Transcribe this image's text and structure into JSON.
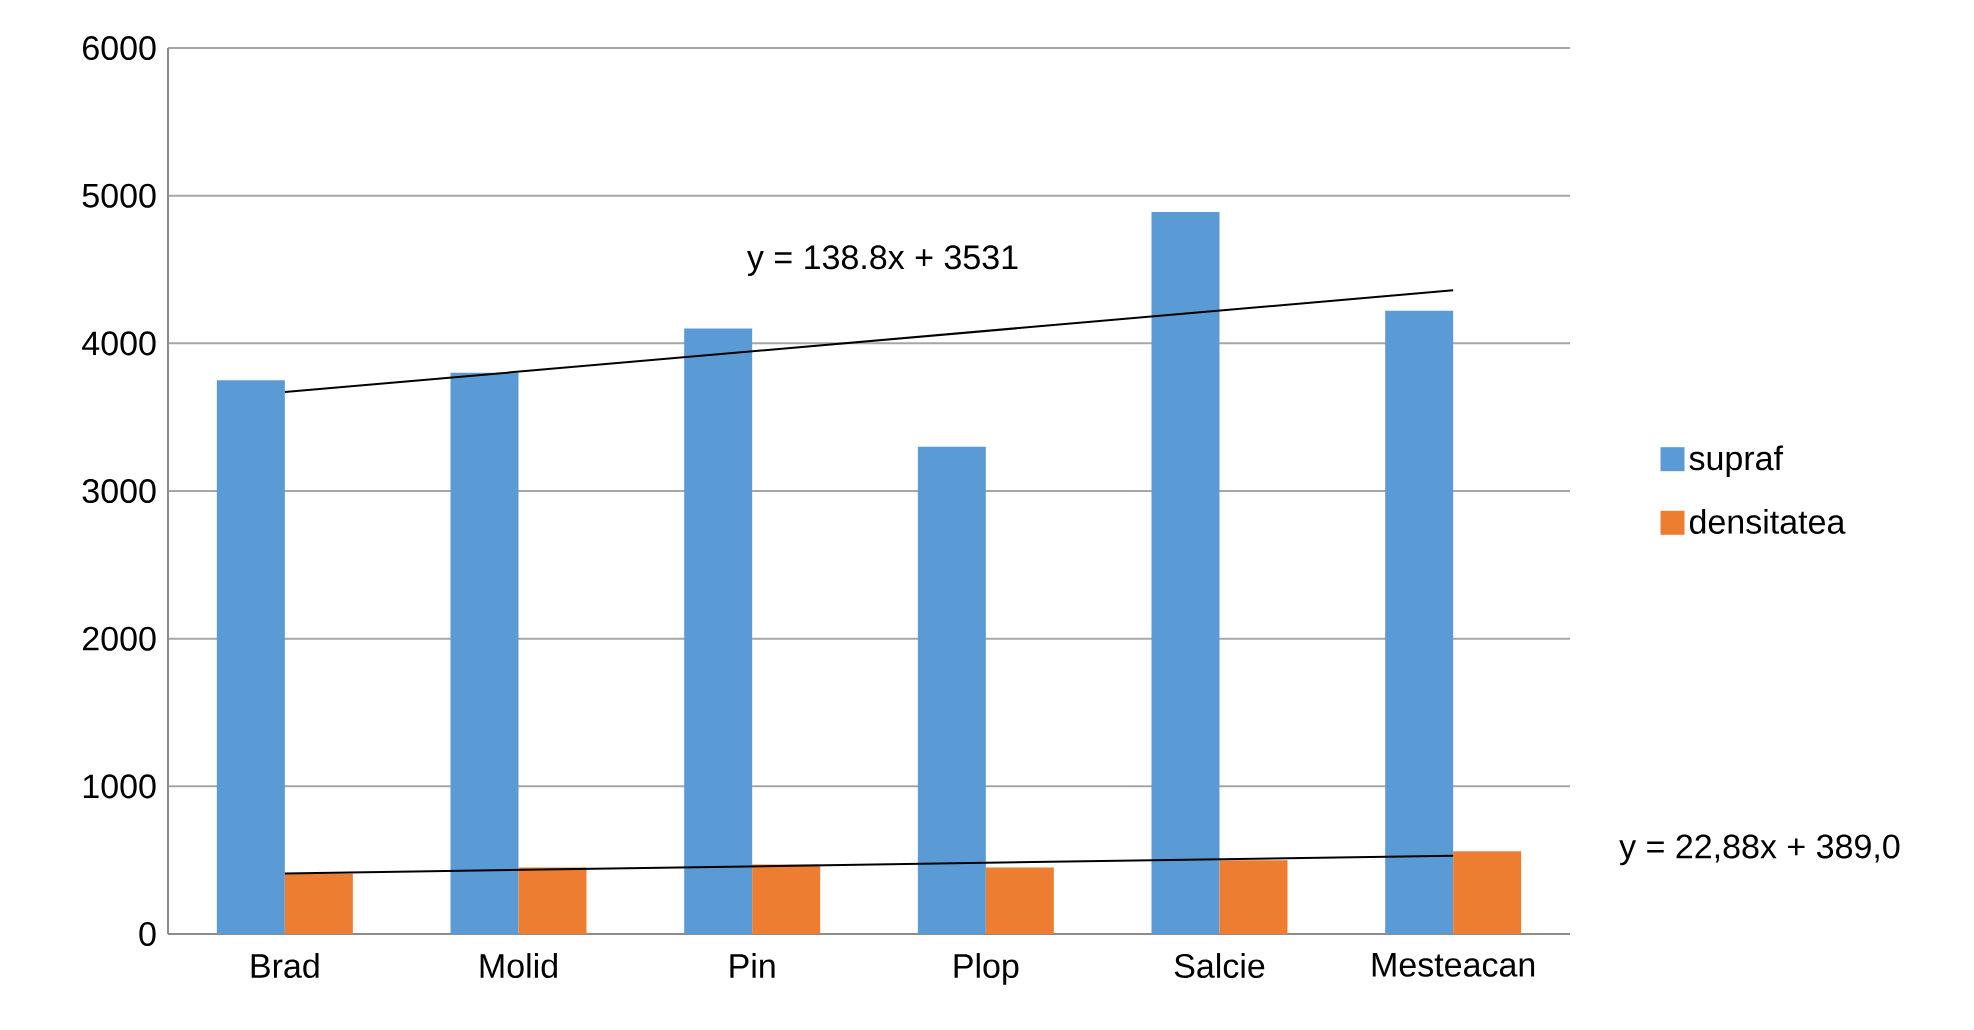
{
  "chart_data": {
    "type": "bar",
    "categories": [
      "Brad",
      "Molid",
      "Pin",
      "Plop",
      "Salcie",
      "Mesteacan"
    ],
    "series": [
      {
        "name": "supraf",
        "color": "#5b9bd5",
        "values": [
          3750,
          3800,
          4100,
          3300,
          4890,
          4220
        ]
      },
      {
        "name": "densitatea",
        "color": "#ed7d31",
        "values": [
          410,
          450,
          470,
          450,
          500,
          560
        ]
      },
      {
        "type": "line",
        "color": "#000000",
        "x": [
          "Brad",
          "Mesteacan"
        ],
        "values": [
          3670,
          4360
        ]
      },
      {
        "type": "line",
        "color": "#000000",
        "x": [
          "Brad",
          "Mesteacan"
        ],
        "values": [
          410,
          530
        ]
      }
    ],
    "ylim": [
      0,
      6000
    ],
    "yticks": [
      0,
      1000,
      2000,
      3000,
      4000,
      5000,
      6000
    ],
    "grid": "y",
    "legend": "right",
    "annotations": [
      "y = 138.8x + 3531",
      "y = 22,88x + 389,0"
    ]
  }
}
